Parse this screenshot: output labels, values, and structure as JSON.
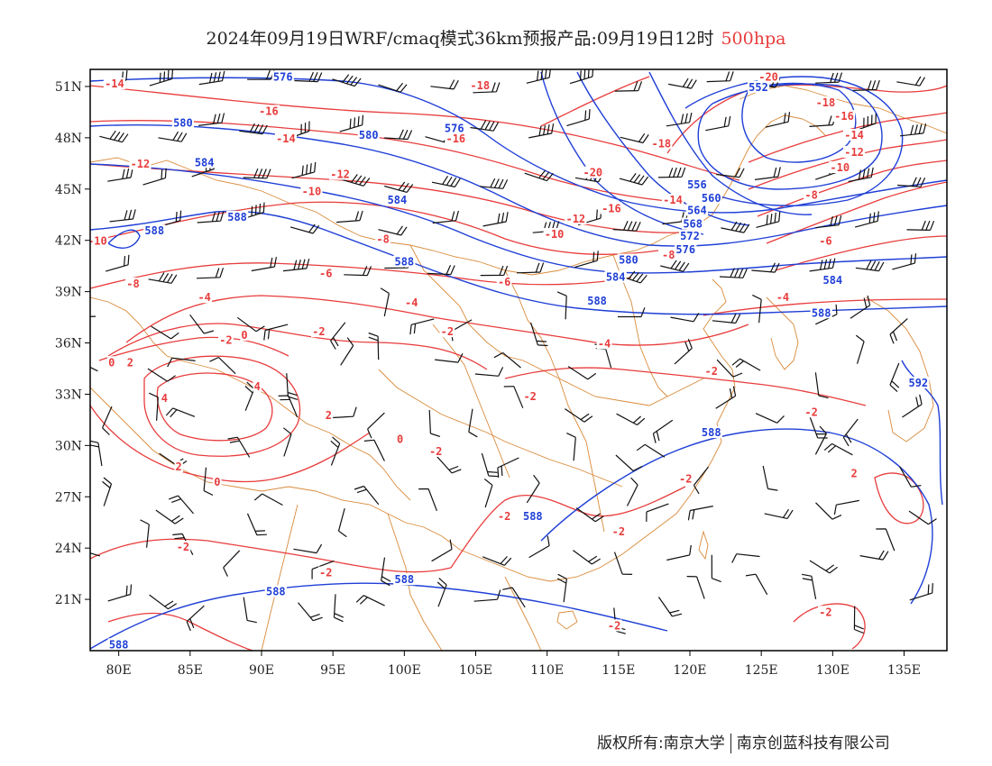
{
  "title": {
    "main": "2024年09月19日WRF/cmaq模式36km预报产品:09月19日12时",
    "level": "500hpa"
  },
  "copyright": {
    "owner": "版权所有:南京大学",
    "partner": "南京创蓝科技有限公司"
  },
  "colors": {
    "temperature": "#e83c3c",
    "geopotential": "#1f3fd6",
    "boundary": "#d98a3a",
    "wind": "#111111",
    "frame": "#000000"
  },
  "map": {
    "lon_range": [
      78,
      138
    ],
    "lat_range": [
      18,
      52
    ],
    "lon_ticks": [
      "80E",
      "85E",
      "90E",
      "95E",
      "100E",
      "105E",
      "110E",
      "115E",
      "120E",
      "125E",
      "130E",
      "135E"
    ],
    "lon_tick_values": [
      80,
      85,
      90,
      95,
      100,
      105,
      110,
      115,
      120,
      125,
      130,
      135
    ],
    "lat_ticks": [
      "21N",
      "24N",
      "27N",
      "30N",
      "33N",
      "36N",
      "39N",
      "42N",
      "45N",
      "48N",
      "51N"
    ],
    "lat_tick_values": [
      21,
      24,
      27,
      30,
      33,
      36,
      39,
      42,
      45,
      48,
      51
    ]
  },
  "contour_labels": {
    "geopotential": [
      {
        "text": "576",
        "lon": 91.5,
        "lat": 51.5
      },
      {
        "text": "580",
        "lon": 84.5,
        "lat": 48.8
      },
      {
        "text": "584",
        "lon": 86.0,
        "lat": 46.5
      },
      {
        "text": "588",
        "lon": 88.3,
        "lat": 43.3
      },
      {
        "text": "588",
        "lon": 82.5,
        "lat": 42.5
      },
      {
        "text": "580",
        "lon": 97.5,
        "lat": 48.1
      },
      {
        "text": "576",
        "lon": 103.5,
        "lat": 48.5
      },
      {
        "text": "584",
        "lon": 99.5,
        "lat": 44.3
      },
      {
        "text": "588",
        "lon": 100.0,
        "lat": 40.7
      },
      {
        "text": "552",
        "lon": 124.8,
        "lat": 50.9
      },
      {
        "text": "556",
        "lon": 120.5,
        "lat": 45.2
      },
      {
        "text": "560",
        "lon": 121.5,
        "lat": 44.4
      },
      {
        "text": "564",
        "lon": 120.5,
        "lat": 43.7
      },
      {
        "text": "568",
        "lon": 120.2,
        "lat": 42.9
      },
      {
        "text": "572",
        "lon": 120.0,
        "lat": 42.2
      },
      {
        "text": "576",
        "lon": 119.7,
        "lat": 41.4
      },
      {
        "text": "580",
        "lon": 115.7,
        "lat": 40.8
      },
      {
        "text": "584",
        "lon": 114.8,
        "lat": 39.8
      },
      {
        "text": "588",
        "lon": 113.5,
        "lat": 38.4
      },
      {
        "text": "584",
        "lon": 130.0,
        "lat": 39.6
      },
      {
        "text": "588",
        "lon": 129.2,
        "lat": 37.7
      },
      {
        "text": "592",
        "lon": 136.0,
        "lat": 33.6
      },
      {
        "text": "588",
        "lon": 121.5,
        "lat": 30.7
      },
      {
        "text": "588",
        "lon": 109.0,
        "lat": 25.8
      },
      {
        "text": "588",
        "lon": 100.0,
        "lat": 22.1
      },
      {
        "text": "588",
        "lon": 91.0,
        "lat": 21.4
      },
      {
        "text": "588",
        "lon": 80.0,
        "lat": 18.3
      }
    ],
    "temperature": [
      {
        "text": "-14",
        "lon": 79.7,
        "lat": 51.1
      },
      {
        "text": "-16",
        "lon": 90.5,
        "lat": 49.5
      },
      {
        "text": "-14",
        "lon": 91.7,
        "lat": 47.9
      },
      {
        "text": "-12",
        "lon": 81.5,
        "lat": 46.4
      },
      {
        "text": "-12",
        "lon": 95.5,
        "lat": 45.8
      },
      {
        "text": "-10",
        "lon": 93.5,
        "lat": 44.8
      },
      {
        "text": "-10",
        "lon": 78.5,
        "lat": 41.9
      },
      {
        "text": "-8",
        "lon": 98.5,
        "lat": 42.0
      },
      {
        "text": "-8",
        "lon": 81.0,
        "lat": 39.4
      },
      {
        "text": "-6",
        "lon": 94.5,
        "lat": 40.0
      },
      {
        "text": "-4",
        "lon": 86.0,
        "lat": 38.6
      },
      {
        "text": "-4",
        "lon": 100.5,
        "lat": 38.3
      },
      {
        "text": "-2",
        "lon": 94.0,
        "lat": 36.6
      },
      {
        "text": "-2",
        "lon": 87.5,
        "lat": 36.1
      },
      {
        "text": "0",
        "lon": 88.8,
        "lat": 36.4
      },
      {
        "text": "0",
        "lon": 79.5,
        "lat": 34.8
      },
      {
        "text": "2",
        "lon": 80.8,
        "lat": 34.8
      },
      {
        "text": "4",
        "lon": 83.2,
        "lat": 32.7
      },
      {
        "text": "4",
        "lon": 89.7,
        "lat": 33.4
      },
      {
        "text": "2",
        "lon": 94.7,
        "lat": 31.7
      },
      {
        "text": "0",
        "lon": 99.7,
        "lat": 30.3
      },
      {
        "text": "2",
        "lon": 84.2,
        "lat": 28.7
      },
      {
        "text": "0",
        "lon": 86.9,
        "lat": 27.8
      },
      {
        "text": "-18",
        "lon": 105.3,
        "lat": 51.0
      },
      {
        "text": "-16",
        "lon": 103.6,
        "lat": 47.9
      },
      {
        "text": "-20",
        "lon": 113.2,
        "lat": 45.9
      },
      {
        "text": "-18",
        "lon": 118.0,
        "lat": 47.6
      },
      {
        "text": "-20",
        "lon": 125.5,
        "lat": 51.5
      },
      {
        "text": "-18",
        "lon": 129.5,
        "lat": 50.0
      },
      {
        "text": "-16",
        "lon": 130.8,
        "lat": 49.2
      },
      {
        "text": "-14",
        "lon": 131.5,
        "lat": 48.1
      },
      {
        "text": "-12",
        "lon": 131.5,
        "lat": 47.1
      },
      {
        "text": "-10",
        "lon": 130.5,
        "lat": 46.2
      },
      {
        "text": "-8",
        "lon": 128.5,
        "lat": 44.6
      },
      {
        "text": "-6",
        "lon": 129.5,
        "lat": 41.9
      },
      {
        "text": "-16",
        "lon": 114.5,
        "lat": 43.8
      },
      {
        "text": "-14",
        "lon": 118.8,
        "lat": 44.3
      },
      {
        "text": "-12",
        "lon": 112.0,
        "lat": 43.2
      },
      {
        "text": "-10",
        "lon": 110.5,
        "lat": 42.3
      },
      {
        "text": "-8",
        "lon": 118.5,
        "lat": 41.1
      },
      {
        "text": "-6",
        "lon": 107.0,
        "lat": 39.5
      },
      {
        "text": "-4",
        "lon": 114.0,
        "lat": 35.9
      },
      {
        "text": "-4",
        "lon": 126.5,
        "lat": 38.6
      },
      {
        "text": "-2",
        "lon": 103.0,
        "lat": 36.6
      },
      {
        "text": "-2",
        "lon": 121.5,
        "lat": 34.3
      },
      {
        "text": "-2",
        "lon": 128.5,
        "lat": 31.9
      },
      {
        "text": "-2",
        "lon": 108.8,
        "lat": 32.8
      },
      {
        "text": "-2",
        "lon": 102.2,
        "lat": 29.6
      },
      {
        "text": "-2",
        "lon": 107.0,
        "lat": 25.8
      },
      {
        "text": "-2",
        "lon": 119.7,
        "lat": 28.0
      },
      {
        "text": "-2",
        "lon": 115.0,
        "lat": 24.9
      },
      {
        "text": "-2",
        "lon": 84.5,
        "lat": 24.0
      },
      {
        "text": "-2",
        "lon": 94.5,
        "lat": 22.5
      },
      {
        "text": "-2",
        "lon": 114.7,
        "lat": 19.4
      },
      {
        "text": "2",
        "lon": 131.5,
        "lat": 28.3
      },
      {
        "text": "-2",
        "lon": 129.5,
        "lat": 20.2
      }
    ]
  }
}
